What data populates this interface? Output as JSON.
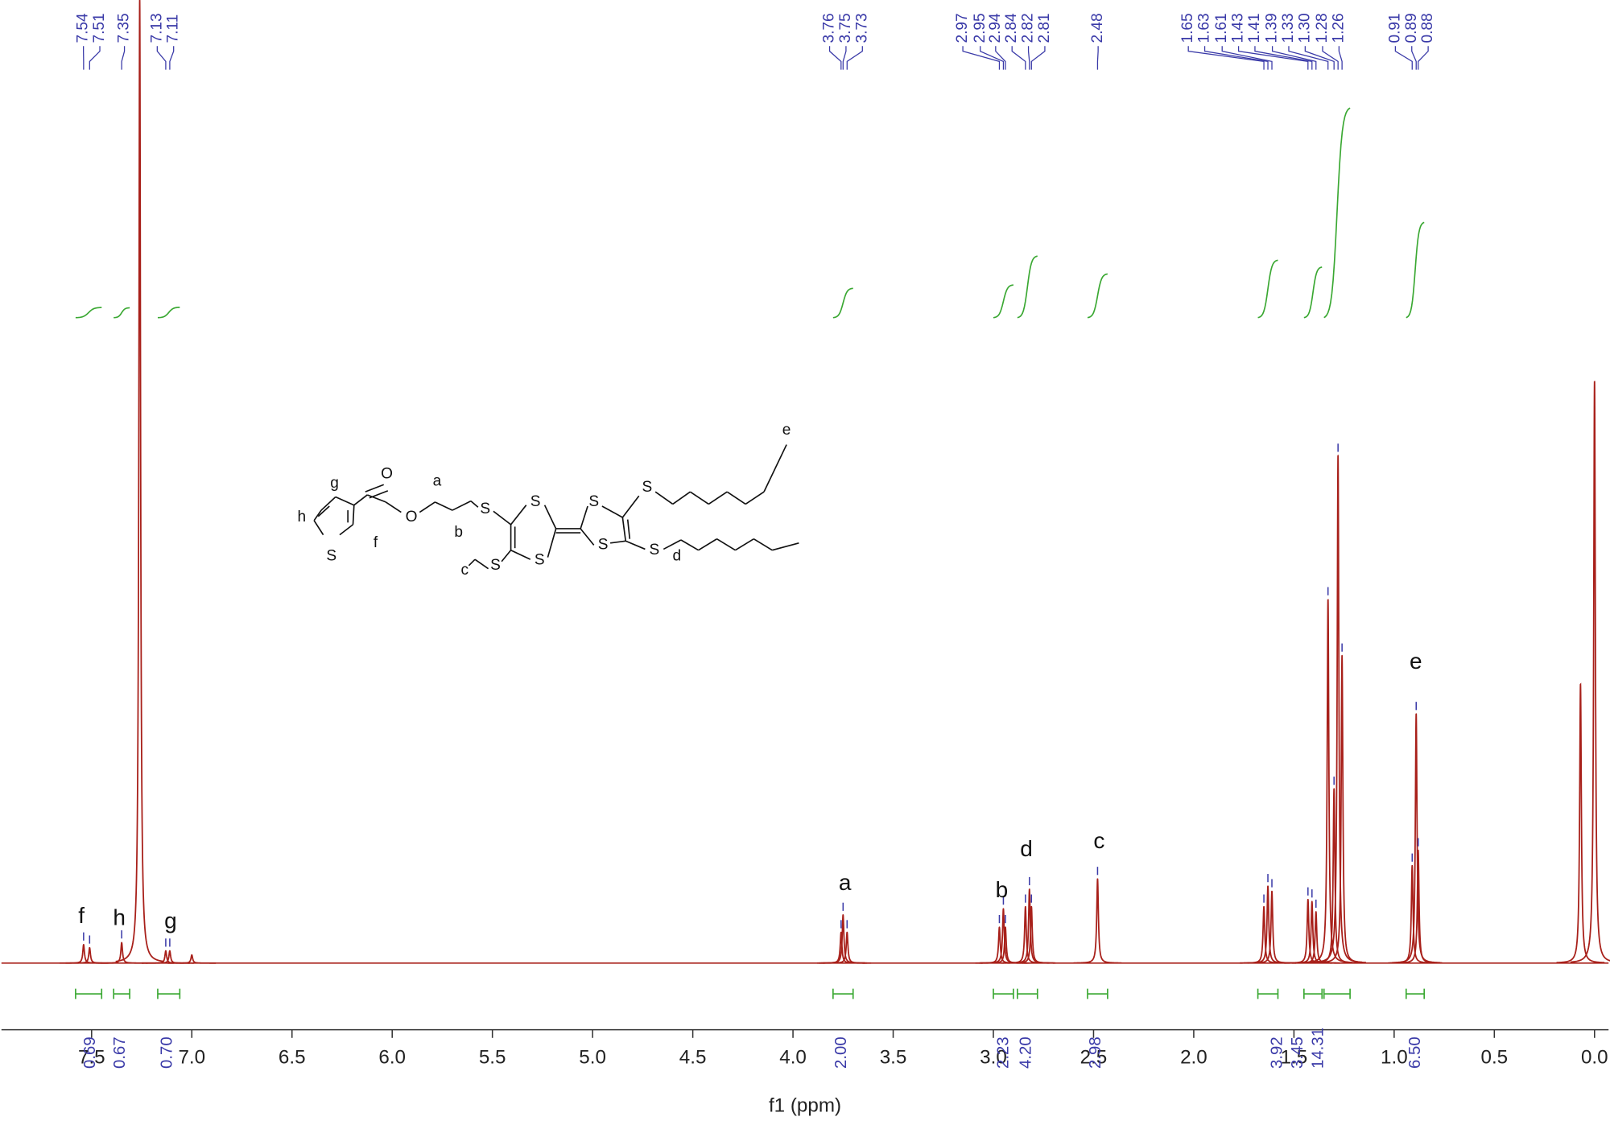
{
  "chart_data": {
    "type": "nmr",
    "xlabel": "f1 (ppm)",
    "xlim": [
      7.95,
      -0.07
    ],
    "xticks": [
      7.5,
      {
        "value": 7,
        "label": "7.0"
      },
      6.5,
      {
        "value": 6,
        "label": "6.0"
      },
      5.5,
      {
        "value": 5,
        "label": "5.0"
      },
      4.5,
      {
        "value": 4,
        "label": "4.0"
      },
      3.5,
      {
        "value": 3,
        "label": "3.0"
      },
      2.5,
      {
        "value": 2,
        "label": "2.0"
      },
      1.5,
      {
        "value": 1,
        "label": "1.0"
      },
      0.5,
      {
        "value": 0,
        "label": "0.0"
      }
    ],
    "ylim": [
      0,
      940
    ],
    "color": "#a8201a",
    "integral_color": "#3aa832",
    "label_color": "#3a3aa8",
    "peaks": {
      "ppm": [
        7.54,
        7.51,
        7.35,
        7.26,
        7.13,
        7.11,
        7.0,
        3.76,
        3.75,
        3.73,
        2.97,
        2.95,
        2.94,
        2.84,
        2.82,
        2.81,
        2.48,
        1.65,
        1.63,
        1.61,
        1.43,
        1.41,
        1.39,
        1.33,
        1.3,
        1.28,
        1.26,
        0.91,
        0.89,
        0.88,
        0.07,
        0.0
      ],
      "values": [
        18,
        15,
        20,
        940,
        12,
        12,
        8,
        30,
        47,
        30,
        35,
        53,
        35,
        55,
        72,
        55,
        82,
        55,
        75,
        70,
        62,
        60,
        50,
        355,
        170,
        495,
        300,
        95,
        243,
        110,
        272,
        568
      ]
    },
    "peak_labels": [
      7.54,
      7.51,
      7.35,
      7.13,
      7.11,
      3.76,
      3.75,
      3.73,
      2.97,
      2.95,
      2.94,
      2.84,
      2.82,
      2.81,
      2.48,
      1.65,
      1.63,
      1.61,
      1.43,
      1.41,
      1.39,
      1.33,
      {
        "value": 1.3,
        "label": "1.30"
      },
      1.28,
      1.26,
      0.91,
      0.89,
      0.88
    ],
    "integrals": [
      0.69,
      0.67,
      {
        "value": 0.7,
        "label": "0.70"
      },
      {
        "value": 2.0,
        "label": "2.00"
      },
      2.23,
      {
        "value": 4.2,
        "label": "4.20"
      },
      2.98,
      3.92,
      3.45,
      14.31,
      {
        "value": 6.5,
        "label": "6.50"
      }
    ],
    "integral_ranges": [
      [
        7.58,
        7.45
      ],
      [
        7.39,
        7.31
      ],
      [
        7.17,
        7.06
      ],
      [
        3.8,
        3.7
      ],
      [
        3.0,
        2.9
      ],
      [
        2.88,
        2.78
      ],
      [
        2.53,
        2.43
      ],
      [
        1.68,
        1.58
      ],
      [
        1.45,
        1.36
      ],
      [
        1.35,
        1.22
      ],
      [
        0.94,
        0.85
      ]
    ],
    "assignments": [
      "f",
      "h",
      "g",
      "a",
      "b",
      "d",
      "c",
      "e"
    ],
    "structure_labels": [
      "h",
      "g",
      "f",
      "S",
      "O",
      "O",
      "a",
      "b",
      "S",
      "S",
      "S",
      "S",
      "S",
      "S",
      "S",
      "S",
      "c",
      "d",
      "e"
    ]
  }
}
